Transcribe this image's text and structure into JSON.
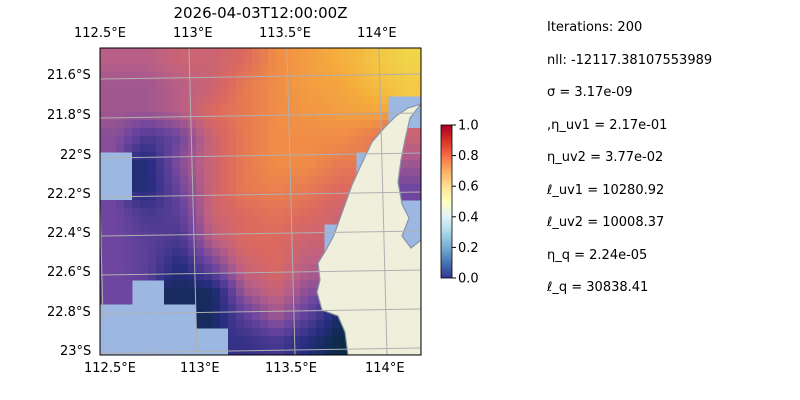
{
  "title": "2026-04-03T12:00:00Z",
  "chart_data": {
    "type": "heatmap",
    "title": "2026-04-03T12:00:00Z",
    "x_ticks": [
      "112.5°E",
      "113°E",
      "113.5°E",
      "114°E"
    ],
    "y_ticks": [
      "21.6°S",
      "21.8°S",
      "22°S",
      "22.2°S",
      "22.4°S",
      "22.6°S",
      "22.8°S",
      "23°S"
    ],
    "xlim": [
      112.5,
      114.2
    ],
    "ylim": [
      -23.0,
      -21.45
    ],
    "colorbar": {
      "ticks": [
        "0.0",
        "0.2",
        "0.4",
        "0.6",
        "0.8",
        "1.0"
      ],
      "range": [
        0,
        1
      ]
    },
    "grid": true,
    "values_grid_rows_north_to_south": [
      [
        0.45,
        0.45,
        0.5,
        0.5,
        0.55,
        0.65,
        0.7,
        0.75,
        0.8,
        0.85
      ],
      [
        0.4,
        0.4,
        0.45,
        0.5,
        0.6,
        0.65,
        0.7,
        0.72,
        0.78,
        0.82
      ],
      [
        0.4,
        0.4,
        0.45,
        0.55,
        0.6,
        0.65,
        0.68,
        0.7,
        0.72,
        null
      ],
      [
        0.35,
        0.2,
        0.3,
        0.5,
        0.6,
        0.65,
        0.65,
        0.65,
        0.6,
        0.5
      ],
      [
        null,
        0.1,
        0.35,
        0.5,
        0.6,
        0.65,
        0.65,
        0.6,
        null,
        0.4
      ],
      [
        null,
        0.1,
        0.3,
        0.5,
        0.6,
        0.62,
        0.6,
        0.55,
        null,
        0.3
      ],
      [
        0.3,
        0.2,
        0.25,
        0.5,
        0.55,
        0.58,
        0.55,
        0.5,
        null,
        null
      ],
      [
        0.3,
        0.25,
        0.2,
        0.45,
        0.55,
        0.55,
        0.5,
        null,
        null,
        null
      ],
      [
        0.3,
        0.25,
        0.1,
        0.3,
        0.5,
        0.55,
        0.45,
        null,
        null,
        null
      ],
      [
        0.3,
        null,
        0.05,
        0.05,
        0.4,
        0.5,
        0.35,
        null,
        null,
        null
      ],
      [
        null,
        null,
        null,
        0.05,
        0.25,
        0.4,
        0.25,
        0.05,
        null,
        null
      ],
      [
        null,
        null,
        null,
        null,
        0.15,
        0.2,
        0.1,
        0.0,
        null,
        null
      ]
    ]
  },
  "stats": [
    "Iterations: 200",
    "nll: -12117.38107553989",
    "σ = 3.17e-09",
    ",η_uv1 = 2.17e-01",
    "η_uv2 = 3.77e-02",
    "ℓ_uv1 = 10280.92",
    "ℓ_uv2 = 10008.37",
    "η_q = 2.24e-05",
    "ℓ_q = 30838.41"
  ],
  "colors": {
    "ocean": "#9cb8e2",
    "land": "#efefdb",
    "coast": "#8896a8",
    "grid": "#b0b0b0"
  }
}
